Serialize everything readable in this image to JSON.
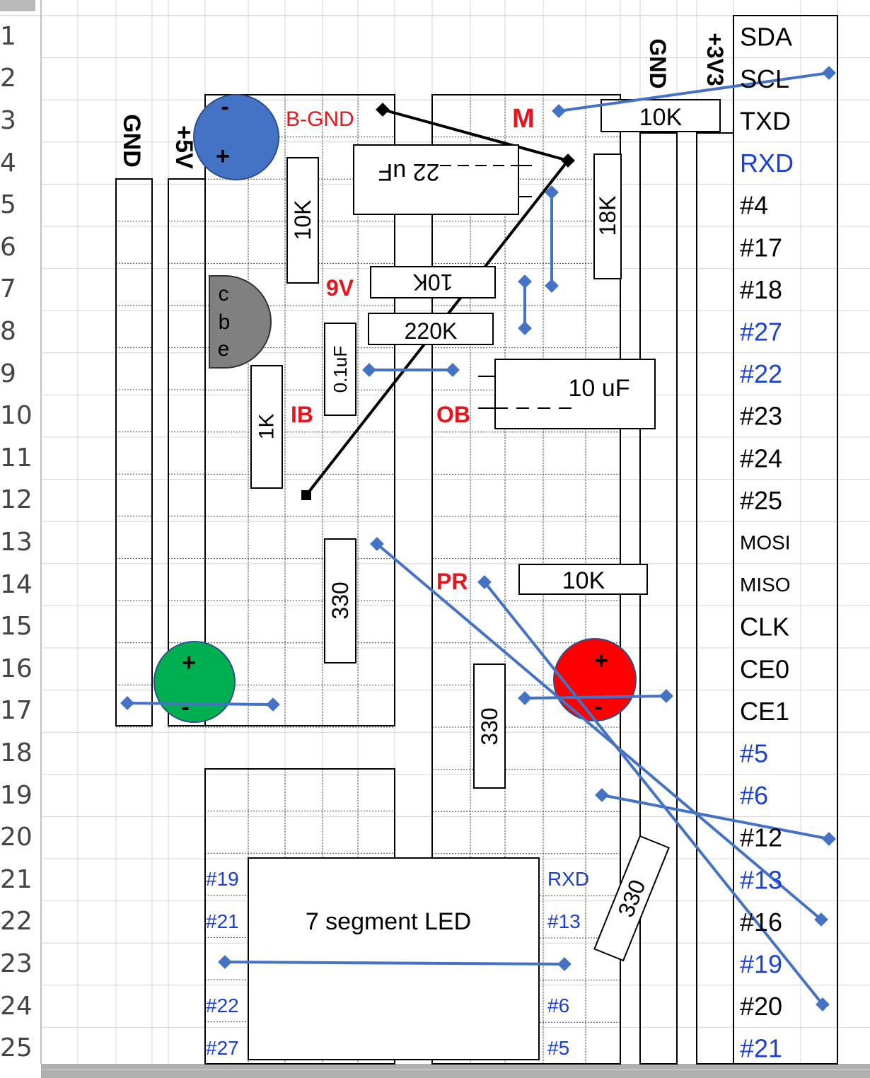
{
  "rows": [
    "1",
    "2",
    "3",
    "4",
    "5",
    "6",
    "7",
    "8",
    "9",
    "10",
    "11",
    "12",
    "13",
    "14",
    "15",
    "16",
    "17",
    "18",
    "19",
    "20",
    "21",
    "22",
    "23",
    "24",
    "25"
  ],
  "rails": {
    "gnd_left": "GND",
    "plus5v": "+5V",
    "gnd_right": "GND",
    "plus3v3": "+3V3"
  },
  "pins": [
    {
      "label": "SDA",
      "color": "#000000"
    },
    {
      "label": "SCL",
      "color": "#000000"
    },
    {
      "label": "TXD",
      "color": "#000000"
    },
    {
      "label": "RXD",
      "color": "#1a3fd6"
    },
    {
      "label": "#4",
      "color": "#000000"
    },
    {
      "label": "#17",
      "color": "#000000"
    },
    {
      "label": "#18",
      "color": "#000000"
    },
    {
      "label": "#27",
      "color": "#1a3fd6"
    },
    {
      "label": "#22",
      "color": "#1a3fd6"
    },
    {
      "label": "#23",
      "color": "#000000"
    },
    {
      "label": "#24",
      "color": "#000000"
    },
    {
      "label": "#25",
      "color": "#000000"
    },
    {
      "label": "MOSI",
      "color": "#000000"
    },
    {
      "label": "MISO",
      "color": "#000000"
    },
    {
      "label": "CLK",
      "color": "#000000"
    },
    {
      "label": "CE0",
      "color": "#000000"
    },
    {
      "label": "CE1",
      "color": "#000000"
    },
    {
      "label": "#5",
      "color": "#1a3fd6"
    },
    {
      "label": "#6",
      "color": "#1a3fd6"
    },
    {
      "label": "#12",
      "color": "#000000"
    },
    {
      "label": "#13",
      "color": "#1a3fd6"
    },
    {
      "label": "#16",
      "color": "#000000"
    },
    {
      "label": "#19",
      "color": "#1a3fd6"
    },
    {
      "label": "#20",
      "color": "#000000"
    },
    {
      "label": "#21",
      "color": "#1a3fd6"
    }
  ],
  "components": {
    "r_10k_top": "10K",
    "r_10k_left": "10K",
    "r_18k": "18K",
    "r_10k_mid": "10K",
    "r_220k": "220K",
    "c_22uf": "22 uF",
    "c_01uf": "0.1uF",
    "c_10uf": "10 uF",
    "r_1k": "1K",
    "r_330_a": "330",
    "r_330_b": "330",
    "r_330_c": "330",
    "r_10k_low": "10K",
    "seg_led": "7 segment LED"
  },
  "node_labels": {
    "bgnd": "B-GND",
    "m": "M",
    "nine_v": "9V",
    "ib": "IB",
    "ob": "OB",
    "pr": "PR"
  },
  "transistor": {
    "c": "c",
    "b": "b",
    "e": "e"
  },
  "leds": {
    "blue": {
      "minus": "-",
      "plus": "+",
      "color": "#4472c4"
    },
    "green": {
      "minus": "-",
      "plus": "+",
      "color": "#00b050"
    },
    "red": {
      "minus": "-",
      "plus": "+",
      "color": "#ff0000"
    }
  },
  "seg_pins": {
    "l1": "#19",
    "l2": "#21",
    "l4": "#22",
    "l5": "#27",
    "r1": "RXD",
    "r2": "#13",
    "r4": "#6",
    "r5": "#5"
  },
  "colors": {
    "label_red": "#e8141b",
    "pin_blue": "#1a3fd6",
    "wire_blue": "#4472c4",
    "wire_black": "#000000"
  }
}
